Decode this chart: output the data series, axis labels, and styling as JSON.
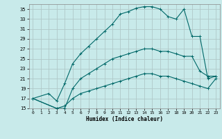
{
  "xlabel": "Humidex (Indice chaleur)",
  "bg_color": "#c8eaea",
  "grid_color": "#b0c8c8",
  "line_color": "#006868",
  "xlim": [
    -0.5,
    23.5
  ],
  "ylim": [
    15,
    36
  ],
  "xticks": [
    0,
    1,
    2,
    3,
    4,
    5,
    6,
    7,
    8,
    9,
    10,
    11,
    12,
    13,
    14,
    15,
    16,
    17,
    18,
    19,
    20,
    21,
    22,
    23
  ],
  "yticks": [
    15,
    17,
    19,
    21,
    23,
    25,
    27,
    29,
    31,
    33,
    35
  ],
  "curve1_x": [
    0,
    2,
    3,
    4,
    5,
    6,
    7,
    8,
    9,
    10,
    11,
    12,
    13,
    14,
    15,
    16,
    17,
    18,
    19,
    20,
    21,
    22,
    23
  ],
  "curve1_y": [
    17,
    18,
    16.5,
    20,
    24,
    26,
    27.5,
    29,
    30.5,
    32,
    34,
    34.5,
    35.2,
    35.5,
    35.5,
    35,
    33.5,
    33,
    35,
    29.5,
    29.5,
    21,
    21.5
  ],
  "curve2_x": [
    0,
    3,
    4,
    5,
    6,
    7,
    8,
    9,
    10,
    11,
    12,
    13,
    14,
    15,
    16,
    17,
    18,
    19,
    20,
    21,
    22,
    23
  ],
  "curve2_y": [
    17,
    15,
    15,
    19,
    21,
    22,
    23,
    24,
    25,
    25.5,
    26,
    26.5,
    27,
    27,
    26.5,
    26.5,
    26,
    25.5,
    25.5,
    22.5,
    21.5,
    21.5
  ],
  "curve3_x": [
    0,
    3,
    4,
    5,
    6,
    7,
    8,
    9,
    10,
    11,
    12,
    13,
    14,
    15,
    16,
    17,
    18,
    19,
    20,
    21,
    22,
    23
  ],
  "curve3_y": [
    17,
    15,
    15.5,
    17,
    18,
    18.5,
    19,
    19.5,
    20,
    20.5,
    21,
    21.5,
    22,
    22,
    21.5,
    21.5,
    21,
    20.5,
    20,
    19.5,
    19,
    21
  ]
}
